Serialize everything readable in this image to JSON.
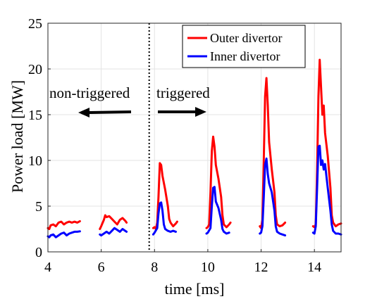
{
  "chart_data": {
    "type": "line",
    "xlabel": "time [ms]",
    "ylabel": "Power load [MW]",
    "xlim": [
      4,
      15
    ],
    "ylim": [
      0,
      25
    ],
    "xticks": [
      "4",
      "6",
      "8",
      "10",
      "12",
      "14"
    ],
    "yticks": [
      "0",
      "5",
      "10",
      "15",
      "20",
      "25"
    ],
    "grid": true,
    "legend_position": "top-right",
    "divider_x": 7.8,
    "annotations": {
      "left": "non-triggered",
      "right": "triggered"
    },
    "series": [
      {
        "name": "Outer divertor",
        "color": "#ff0000",
        "segments": [
          [
            [
              4.0,
              2.6
            ],
            [
              4.05,
              2.5
            ],
            [
              4.1,
              2.9
            ],
            [
              4.2,
              3.0
            ],
            [
              4.3,
              2.8
            ],
            [
              4.4,
              3.2
            ],
            [
              4.5,
              3.3
            ],
            [
              4.6,
              3.0
            ],
            [
              4.7,
              3.2
            ],
            [
              4.8,
              3.3
            ],
            [
              4.9,
              3.2
            ],
            [
              5.0,
              3.3
            ],
            [
              5.1,
              3.2
            ],
            [
              5.2,
              3.35
            ]
          ],
          [
            [
              5.95,
              2.5
            ],
            [
              6.0,
              2.8
            ],
            [
              6.1,
              3.5
            ],
            [
              6.15,
              4.0
            ],
            [
              6.2,
              3.8
            ],
            [
              6.3,
              3.9
            ],
            [
              6.4,
              3.6
            ],
            [
              6.5,
              3.3
            ],
            [
              6.6,
              3.0
            ],
            [
              6.7,
              3.5
            ],
            [
              6.8,
              3.7
            ],
            [
              6.9,
              3.4
            ],
            [
              6.95,
              3.2
            ]
          ],
          [
            [
              7.95,
              2.6
            ],
            [
              8.0,
              2.7
            ],
            [
              8.05,
              2.5
            ],
            [
              8.1,
              3.2
            ],
            [
              8.15,
              6.0
            ],
            [
              8.2,
              9.7
            ],
            [
              8.25,
              9.5
            ],
            [
              8.3,
              8.3
            ],
            [
              8.4,
              6.8
            ],
            [
              8.5,
              5.0
            ],
            [
              8.55,
              3.6
            ],
            [
              8.6,
              3.2
            ],
            [
              8.7,
              2.8
            ],
            [
              8.8,
              3.1
            ],
            [
              8.85,
              3.3
            ]
          ],
          [
            [
              9.95,
              2.6
            ],
            [
              10.0,
              2.7
            ],
            [
              10.05,
              3.0
            ],
            [
              10.1,
              6.5
            ],
            [
              10.15,
              11.0
            ],
            [
              10.2,
              12.6
            ],
            [
              10.25,
              11.5
            ],
            [
              10.3,
              9.5
            ],
            [
              10.4,
              8.0
            ],
            [
              10.5,
              6.0
            ],
            [
              10.55,
              4.0
            ],
            [
              10.6,
              3.0
            ],
            [
              10.7,
              2.7
            ],
            [
              10.8,
              3.0
            ],
            [
              10.85,
              3.2
            ]
          ],
          [
            [
              11.95,
              2.8
            ],
            [
              12.0,
              2.6
            ],
            [
              12.05,
              3.5
            ],
            [
              12.1,
              10.0
            ],
            [
              12.15,
              17.0
            ],
            [
              12.2,
              19.0
            ],
            [
              12.25,
              16.0
            ],
            [
              12.3,
              12.0
            ],
            [
              12.4,
              9.0
            ],
            [
              12.5,
              6.5
            ],
            [
              12.55,
              4.0
            ],
            [
              12.6,
              3.0
            ],
            [
              12.7,
              2.8
            ],
            [
              12.8,
              2.9
            ],
            [
              12.9,
              3.2
            ]
          ],
          [
            [
              13.95,
              2.8
            ],
            [
              14.0,
              2.7
            ],
            [
              14.05,
              3.0
            ],
            [
              14.1,
              9.0
            ],
            [
              14.15,
              17.0
            ],
            [
              14.2,
              21.0
            ],
            [
              14.25,
              18.0
            ],
            [
              14.3,
              15.0
            ],
            [
              14.35,
              16.0
            ],
            [
              14.4,
              13.0
            ],
            [
              14.5,
              10.5
            ],
            [
              14.6,
              7.0
            ],
            [
              14.65,
              4.0
            ],
            [
              14.7,
              3.2
            ],
            [
              14.8,
              2.8
            ],
            [
              14.9,
              3.0
            ],
            [
              15.0,
              3.1
            ]
          ]
        ]
      },
      {
        "name": "Inner divertor",
        "color": "#0000ff",
        "segments": [
          [
            [
              4.0,
              1.7
            ],
            [
              4.05,
              1.6
            ],
            [
              4.1,
              1.8
            ],
            [
              4.2,
              1.9
            ],
            [
              4.3,
              1.6
            ],
            [
              4.4,
              1.8
            ],
            [
              4.5,
              2.0
            ],
            [
              4.6,
              2.1
            ],
            [
              4.7,
              1.8
            ],
            [
              4.8,
              2.0
            ],
            [
              4.9,
              2.1
            ],
            [
              5.0,
              2.2
            ],
            [
              5.1,
              2.2
            ],
            [
              5.2,
              2.25
            ]
          ],
          [
            [
              5.95,
              1.9
            ],
            [
              6.0,
              1.8
            ],
            [
              6.1,
              2.0
            ],
            [
              6.2,
              2.2
            ],
            [
              6.3,
              2.0
            ],
            [
              6.4,
              2.3
            ],
            [
              6.5,
              2.6
            ],
            [
              6.6,
              2.4
            ],
            [
              6.7,
              2.2
            ],
            [
              6.8,
              2.5
            ],
            [
              6.9,
              2.3
            ],
            [
              6.95,
              2.2
            ]
          ],
          [
            [
              7.95,
              1.9
            ],
            [
              8.0,
              2.1
            ],
            [
              8.1,
              2.6
            ],
            [
              8.15,
              4.2
            ],
            [
              8.2,
              5.3
            ],
            [
              8.25,
              5.4
            ],
            [
              8.3,
              4.5
            ],
            [
              8.35,
              3.0
            ],
            [
              8.4,
              2.5
            ],
            [
              8.5,
              2.3
            ],
            [
              8.6,
              2.2
            ],
            [
              8.7,
              2.3
            ],
            [
              8.8,
              2.2
            ]
          ],
          [
            [
              9.95,
              2.0
            ],
            [
              10.0,
              2.1
            ],
            [
              10.1,
              2.6
            ],
            [
              10.15,
              5.0
            ],
            [
              10.2,
              7.0
            ],
            [
              10.25,
              7.1
            ],
            [
              10.3,
              5.5
            ],
            [
              10.4,
              4.8
            ],
            [
              10.5,
              3.5
            ],
            [
              10.55,
              2.5
            ],
            [
              10.6,
              2.2
            ],
            [
              10.7,
              2.0
            ],
            [
              10.8,
              2.1
            ]
          ],
          [
            [
              11.95,
              2.0
            ],
            [
              12.0,
              2.1
            ],
            [
              12.05,
              2.8
            ],
            [
              12.1,
              6.0
            ],
            [
              12.15,
              9.5
            ],
            [
              12.2,
              10.2
            ],
            [
              12.25,
              8.5
            ],
            [
              12.3,
              7.5
            ],
            [
              12.4,
              6.5
            ],
            [
              12.5,
              4.5
            ],
            [
              12.55,
              2.8
            ],
            [
              12.6,
              2.2
            ],
            [
              12.7,
              2.0
            ],
            [
              12.8,
              1.9
            ],
            [
              12.9,
              1.8
            ]
          ],
          [
            [
              13.95,
              2.1
            ],
            [
              14.0,
              2.0
            ],
            [
              14.05,
              2.8
            ],
            [
              14.1,
              7.0
            ],
            [
              14.15,
              11.5
            ],
            [
              14.2,
              11.6
            ],
            [
              14.25,
              9.5
            ],
            [
              14.3,
              10.0
            ],
            [
              14.35,
              9.0
            ],
            [
              14.4,
              9.6
            ],
            [
              14.5,
              7.0
            ],
            [
              14.6,
              4.5
            ],
            [
              14.65,
              3.0
            ],
            [
              14.7,
              2.3
            ],
            [
              14.8,
              2.0
            ],
            [
              14.9,
              2.0
            ],
            [
              15.0,
              1.9
            ]
          ]
        ]
      }
    ]
  }
}
